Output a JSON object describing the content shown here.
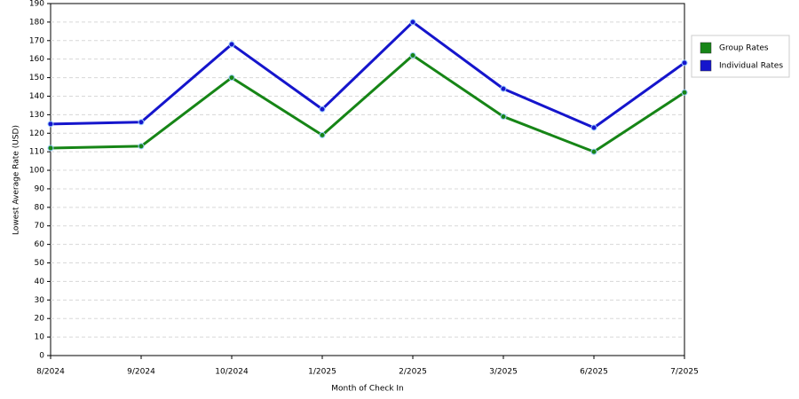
{
  "chart_data": {
    "type": "line",
    "x_label": "Month of Check In",
    "y_label": "Lowest Average Rate (USD)",
    "categories": [
      "8/2024",
      "9/2024",
      "10/2024",
      "1/2025",
      "2/2025",
      "3/2025",
      "6/2025",
      "7/2025"
    ],
    "series": [
      {
        "name": "Group Rates",
        "color": "#168516",
        "values": [
          112,
          113,
          150,
          119,
          162,
          129,
          110,
          142
        ]
      },
      {
        "name": "Individual Rates",
        "color": "#1515cc",
        "values": [
          125,
          126,
          168,
          133,
          180,
          144,
          123,
          158
        ]
      }
    ],
    "ylim": [
      0,
      190
    ],
    "yticks": [
      0,
      10,
      20,
      30,
      40,
      50,
      60,
      70,
      80,
      90,
      100,
      110,
      120,
      130,
      140,
      150,
      160,
      170,
      180,
      190
    ],
    "grid": true,
    "legend": "right"
  }
}
